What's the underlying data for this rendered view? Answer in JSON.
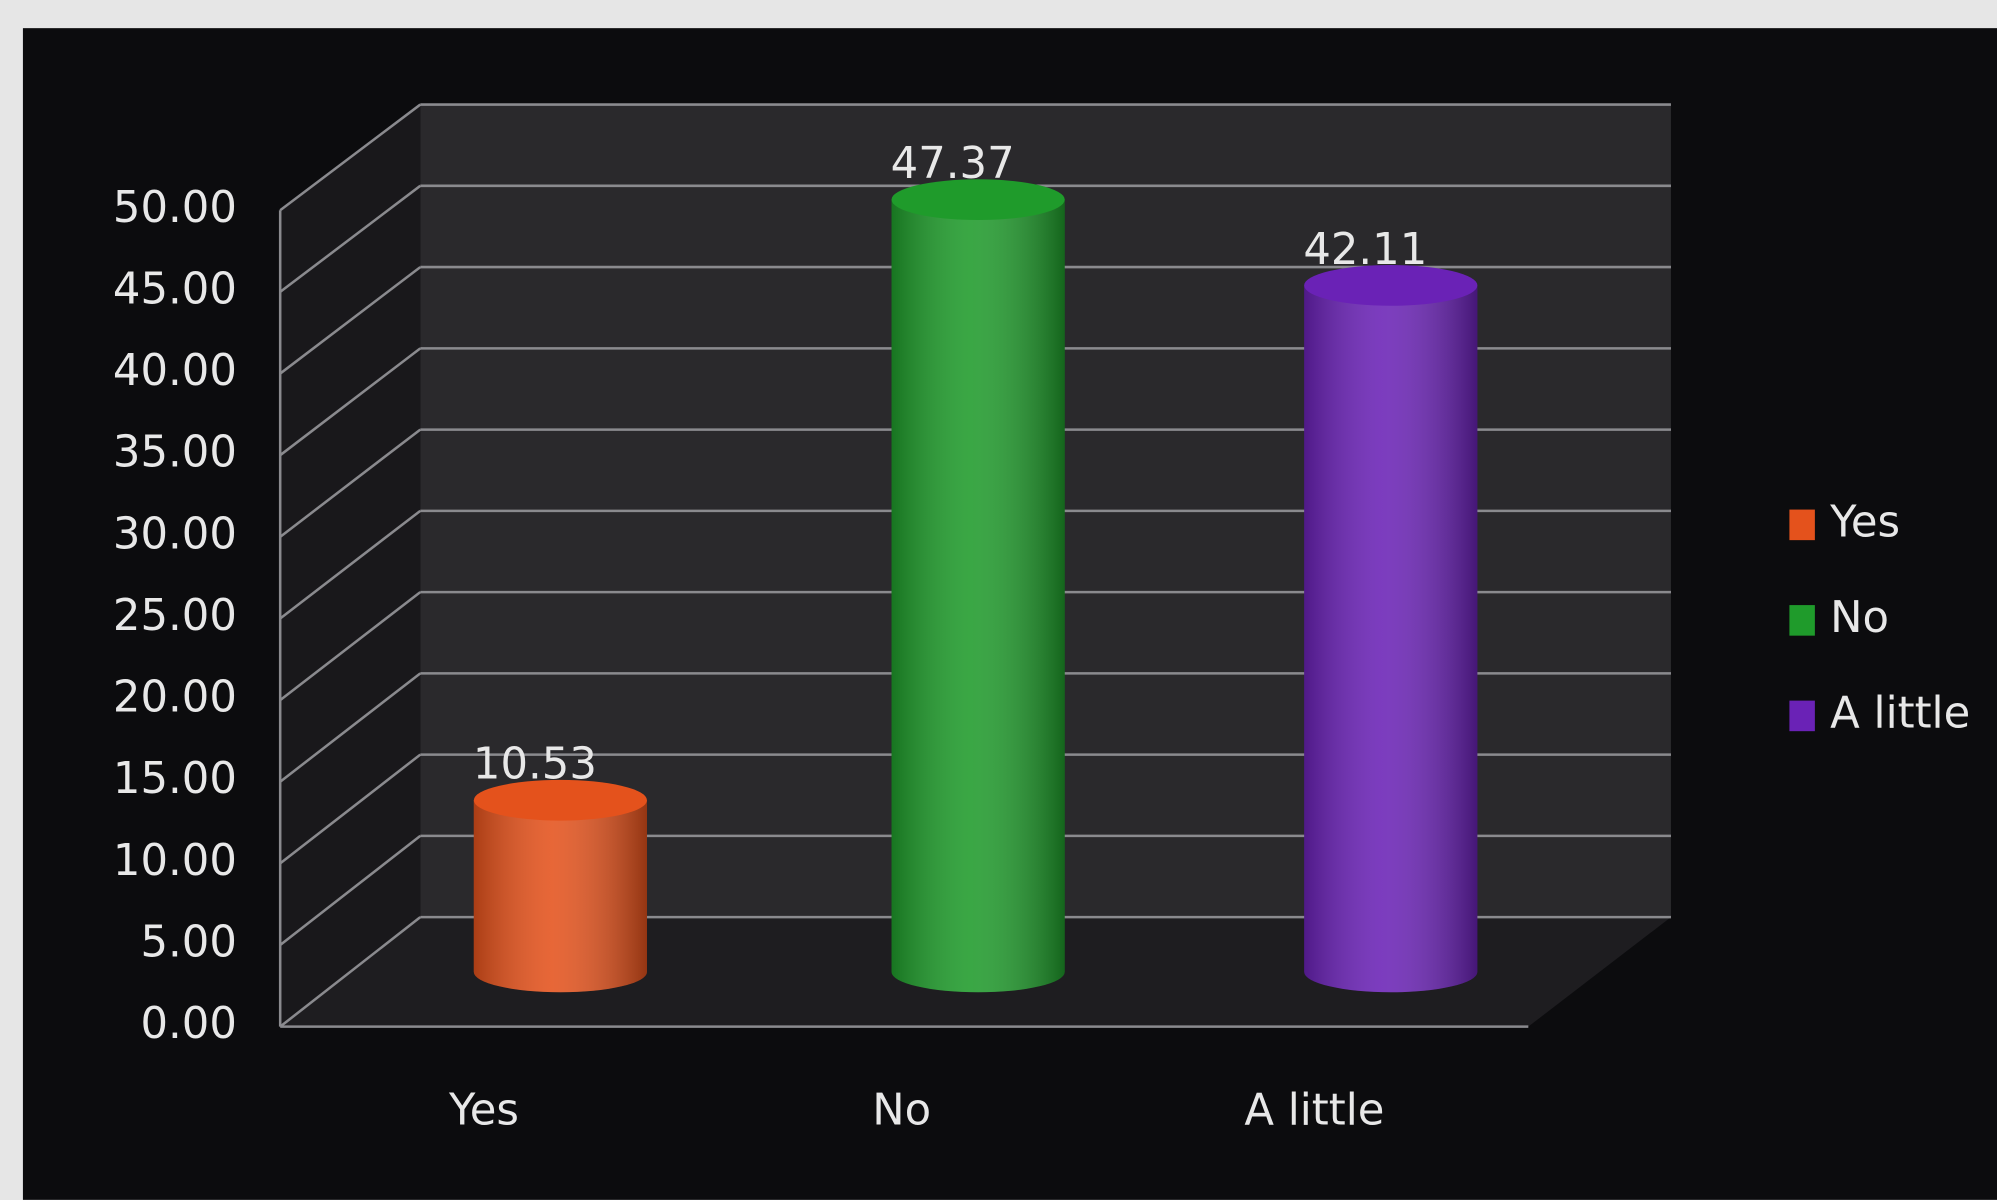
{
  "chart_data": {
    "type": "bar",
    "categories": [
      "Yes",
      "No",
      "A little"
    ],
    "values": [
      10.53,
      47.37,
      42.11
    ],
    "colors": [
      "#e4521c",
      "#1f9b2b",
      "#6a22b6"
    ],
    "ylim": [
      0,
      50
    ],
    "yticks": [
      {
        "value": 0,
        "label": "0.00"
      },
      {
        "value": 5,
        "label": "5.00"
      },
      {
        "value": 10,
        "label": "10.00"
      },
      {
        "value": 15,
        "label": "15.00"
      },
      {
        "value": 20,
        "label": "20.00"
      },
      {
        "value": 25,
        "label": "25.00"
      },
      {
        "value": 30,
        "label": "30.00"
      },
      {
        "value": 35,
        "label": "35.00"
      },
      {
        "value": 40,
        "label": "40.00"
      },
      {
        "value": 45,
        "label": "45.00"
      },
      {
        "value": 50,
        "label": "50.00"
      }
    ],
    "grid": true,
    "legend": "right"
  }
}
